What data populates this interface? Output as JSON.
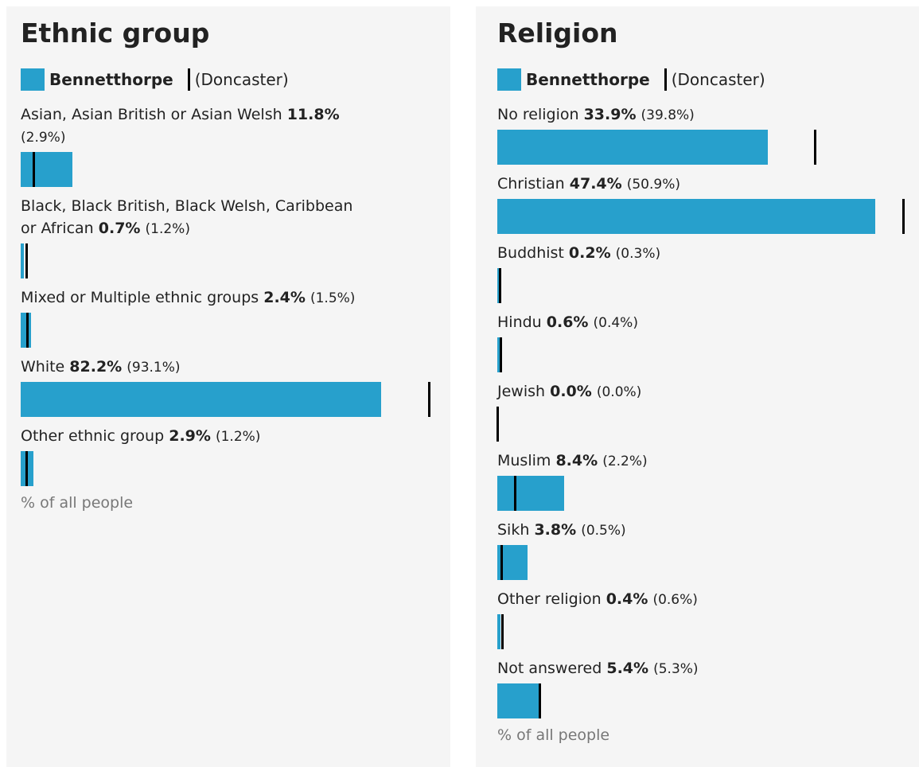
{
  "chart_data": [
    {
      "type": "bar",
      "title": "Ethnic group",
      "xlabel": "% of all people",
      "xlim": [
        0,
        100
      ],
      "categories": [
        "Asian, Asian British or Asian Welsh",
        "Black, Black British, Black Welsh, Caribbean or African",
        "Mixed or Multiple ethnic groups",
        "White",
        "Other ethnic group"
      ],
      "series": [
        {
          "name": "Bennetthorpe",
          "color": "#27a0cc",
          "values": [
            11.8,
            0.7,
            2.4,
            82.2,
            2.9
          ],
          "value_labels": [
            "11.8%",
            "0.7%",
            "2.4%",
            "82.2%",
            "2.9%"
          ]
        },
        {
          "name": "(Doncaster)",
          "color": "#000000",
          "values": [
            2.9,
            1.2,
            1.5,
            93.1,
            1.2
          ],
          "value_labels": [
            "(2.9%)",
            "(1.2%)",
            "(1.5%)",
            "(93.1%)",
            "(1.2%)"
          ]
        }
      ]
    },
    {
      "type": "bar",
      "title": "Religion",
      "xlabel": "% of all people",
      "xlim": [
        0,
        55
      ],
      "categories": [
        "No religion",
        "Christian",
        "Buddhist",
        "Hindu",
        "Jewish",
        "Muslim",
        "Sikh",
        "Other religion",
        "Not answered"
      ],
      "series": [
        {
          "name": "Bennetthorpe",
          "color": "#27a0cc",
          "values": [
            33.9,
            47.4,
            0.2,
            0.6,
            0.0,
            8.4,
            3.8,
            0.4,
            5.4
          ],
          "value_labels": [
            "33.9%",
            "47.4%",
            "0.2%",
            "0.6%",
            "0.0%",
            "8.4%",
            "3.8%",
            "0.4%",
            "5.4%"
          ]
        },
        {
          "name": "(Doncaster)",
          "color": "#000000",
          "values": [
            39.8,
            50.9,
            0.3,
            0.4,
            0.0,
            2.2,
            0.5,
            0.6,
            5.3
          ],
          "value_labels": [
            "(39.8%)",
            "(50.9%)",
            "(0.3%)",
            "(0.4%)",
            "(0.0%)",
            "(2.2%)",
            "(0.5%)",
            "(0.6%)",
            "(5.3%)"
          ]
        }
      ]
    }
  ]
}
